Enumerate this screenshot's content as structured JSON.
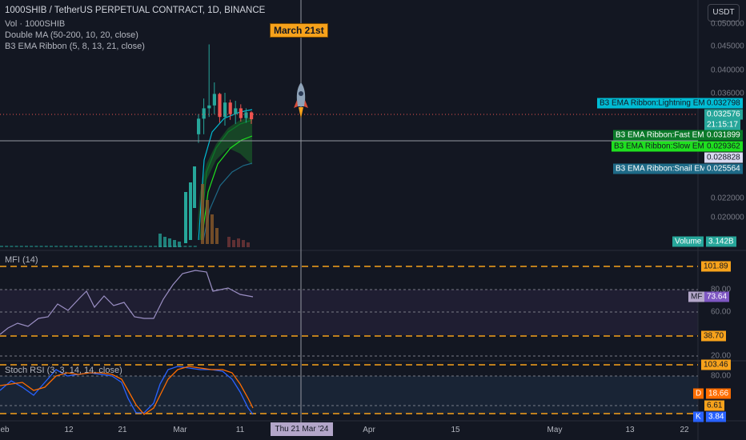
{
  "legend": {
    "title": "1000SHIB / TetherUS PERPETUAL CONTRACT, 1D, BINANCE",
    "lines": [
      "Vol · 1000SHIB",
      "Double MA (50-200, 10, 20, close)",
      "B3 EMA Ribbon (5, 8, 13, 21, close)"
    ]
  },
  "currency": "USDT",
  "annotation": "March 21st",
  "crosshair_date": "Thu 21 Mar '24",
  "main_axis": {
    "ticks": [
      "0.050000",
      "0.045000",
      "0.040000",
      "0.036000",
      "0.022000",
      "0.020000"
    ]
  },
  "price_badges": {
    "lightning_label": "B3 EMA Ribbon:Lightning EMA",
    "lightning_value": "0.032798",
    "last_price": "0.032576",
    "countdown": "21:15:17",
    "fast_label": "B3 EMA Ribbon:Fast EMA",
    "fast_value": "0.031899",
    "slow_label": "B3 EMA Ribbon:Slow EMA",
    "slow_value": "0.029362",
    "crosshair_price": "0.028828",
    "snail_label": "B3 EMA Ribbon:Snail EMA",
    "snail_value": "0.025564",
    "volume_label": "Volume",
    "volume_value": "3.142B"
  },
  "mfi": {
    "label": "MFI (14)",
    "upper_value": "101.89",
    "ticks": [
      "80.00",
      "60.00",
      "20.00"
    ],
    "mf_label": "MF",
    "mf_value": "73.64",
    "lower_value": "38.70"
  },
  "stoch": {
    "label": "Stoch RSI (3, 3, 14, 14, close)",
    "upper_value": "103.46",
    "tick": "80.00",
    "d_label": "D",
    "d_value": "18.66",
    "lower_value": "6.61",
    "k_label": "K",
    "k_value": "3.84"
  },
  "x_axis": [
    "eb",
    "12",
    "21",
    "Mar",
    "11",
    "Apr",
    "15",
    "May",
    "13",
    "22"
  ],
  "colors": {
    "bg": "#131722",
    "up": "#26a69a",
    "down": "#ef5350",
    "orange": "#f7a21b",
    "mfi_line": "#9b8fc4",
    "stoch_k": "#2962ff",
    "stoch_d": "#ff6d00"
  },
  "chart_data": {
    "type": "candlestick",
    "candles_note_free": true,
    "ohlc": [
      [
        0.03,
        0.0335,
        0.0285,
        0.0327
      ],
      [
        0.0327,
        0.0362,
        0.03,
        0.0345
      ],
      [
        0.0345,
        0.0456,
        0.033,
        0.035
      ],
      [
        0.035,
        0.039,
        0.0335,
        0.037
      ],
      [
        0.037,
        0.0372,
        0.032,
        0.033
      ],
      [
        0.033,
        0.0372,
        0.0315,
        0.0355
      ],
      [
        0.0355,
        0.036,
        0.0325,
        0.0335
      ],
      [
        0.0335,
        0.0358,
        0.0318,
        0.0345
      ],
      [
        0.0345,
        0.0352,
        0.0322,
        0.0328
      ],
      [
        0.0328,
        0.0345,
        0.032,
        0.0338
      ],
      [
        0.0338,
        0.034,
        0.0318,
        0.0326
      ]
    ]
  }
}
